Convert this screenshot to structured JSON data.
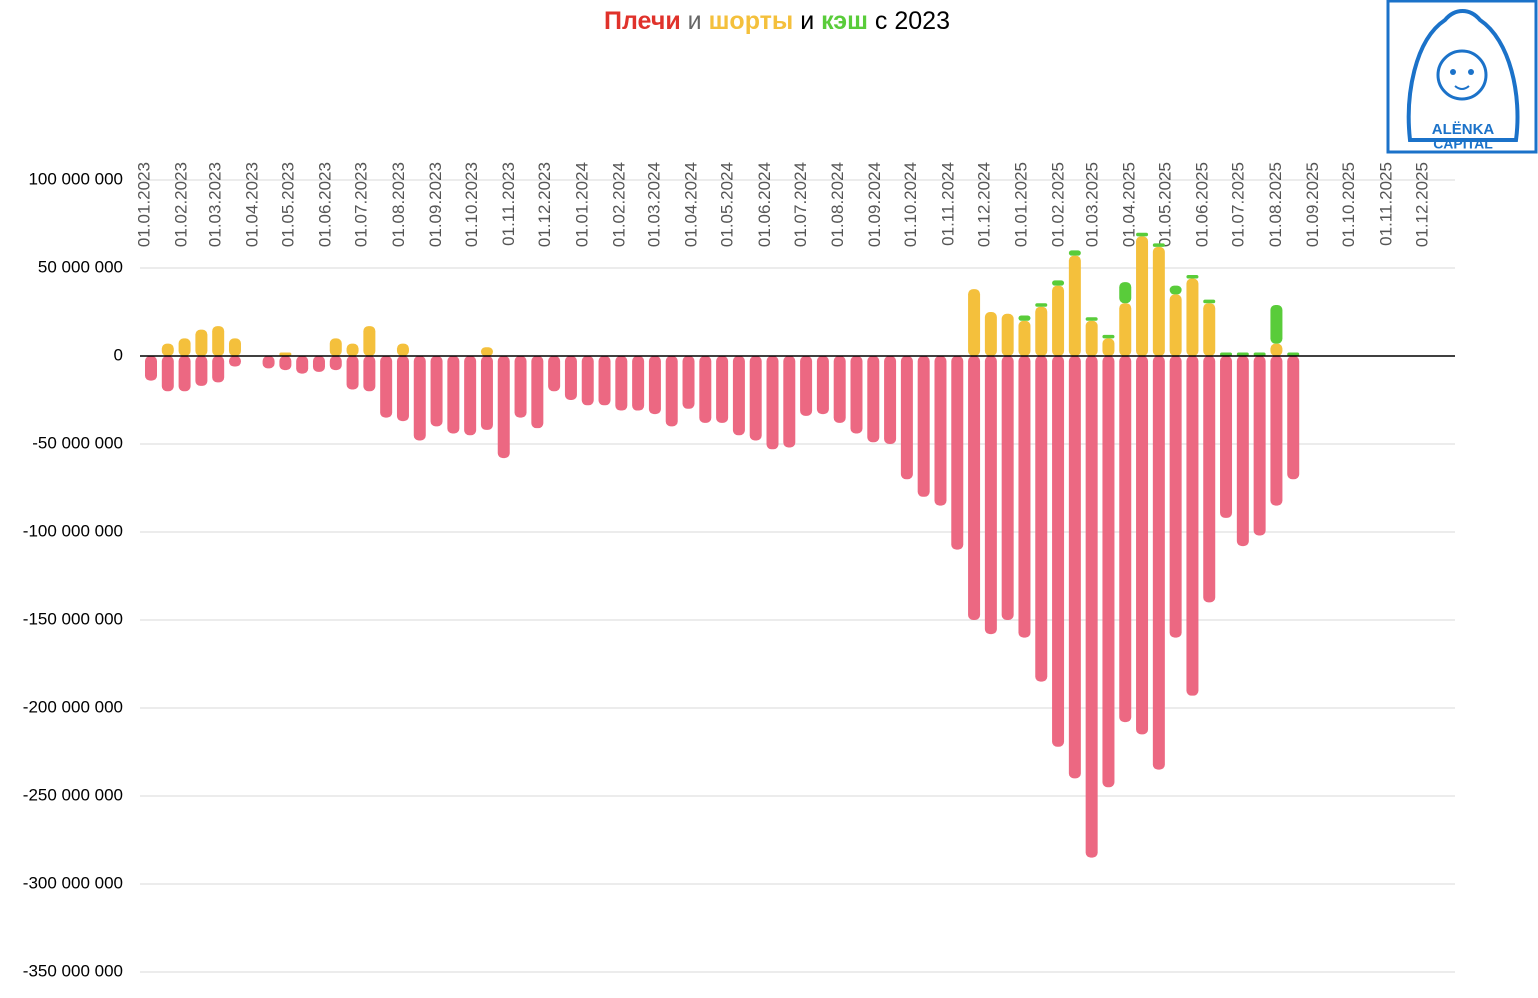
{
  "chart_data": {
    "type": "bar",
    "title": [
      {
        "text": "Плечи",
        "color": "#e0322b",
        "bold": true
      },
      {
        "text": "и",
        "color": "#666666",
        "bold": false
      },
      {
        "text": "шорты",
        "color": "#f4c03c",
        "bold": true
      },
      {
        "text": "и",
        "color": "#000000",
        "bold": false
      },
      {
        "text": "кэш",
        "color": "#59cc3a",
        "bold": true
      },
      {
        "text": "с 2023",
        "color": "#000000",
        "bold": false
      }
    ],
    "logo": {
      "line1": "ALËNKA",
      "line2": "CAPITAL"
    },
    "stacked": true,
    "x": [
      "06.01.2023",
      "20.01.2023",
      "03.02.2023",
      "17.02.2023",
      "03.03.2023",
      "17.03.2023",
      "31.03.2023",
      "14.04.2023",
      "28.04.2023",
      "12.05.2023",
      "26.05.2023",
      "09.06.2023",
      "23.06.2023",
      "07.07.2023",
      "21.07.2023",
      "04.08.2023",
      "18.08.2023",
      "01.09.2023",
      "15.09.2023",
      "29.09.2023",
      "13.10.2023",
      "27.10.2023",
      "10.11.2023",
      "24.11.2023",
      "08.12.2023",
      "22.12.2023",
      "05.01.2024",
      "19.01.2024",
      "02.02.2024",
      "16.02.2024",
      "01.03.2024",
      "15.03.2024",
      "29.03.2024",
      "12.04.2024",
      "26.04.2024",
      "10.05.2024",
      "24.05.2024",
      "07.06.2024",
      "21.06.2024",
      "05.07.2024",
      "19.07.2024",
      "02.08.2024",
      "16.08.2024",
      "30.08.2024",
      "13.09.2024",
      "27.09.2024",
      "11.10.2024",
      "25.10.2024",
      "08.11.2024",
      "22.11.2024",
      "06.12.2024",
      "20.12.2024",
      "03.01.2025",
      "17.01.2025",
      "31.01.2025",
      "14.02.2025",
      "28.02.2025",
      "14.03.2025",
      "28.03.2025",
      "11.04.2025",
      "25.04.2025",
      "09.05.2025",
      "23.05.2025",
      "06.06.2025",
      "20.06.2025",
      "04.07.2025",
      "18.07.2025",
      "01.08.2025",
      "15.08.2025"
    ],
    "series": [
      {
        "color": "#ec6882",
        "values": [
          -14000000,
          -20000000,
          -20000000,
          -17000000,
          -15000000,
          -6000000,
          null,
          -7000000,
          -8000000,
          -10000000,
          -9000000,
          -8000000,
          -19000000,
          -20000000,
          -35000000,
          -37000000,
          -48000000,
          -40000000,
          -44000000,
          -45000000,
          -42000000,
          -58000000,
          -35000000,
          -41000000,
          -20000000,
          -25000000,
          -28000000,
          -28000000,
          -31000000,
          -31000000,
          -33000000,
          -40000000,
          -30000000,
          -38000000,
          -38000000,
          -45000000,
          -48000000,
          -53000000,
          -52000000,
          -34000000,
          -33000000,
          -38000000,
          -44000000,
          -49000000,
          -50000000,
          -70000000,
          -80000000,
          -85000000,
          -110000000,
          -150000000,
          -158000000,
          -150000000,
          -160000000,
          -185000000,
          -222000000,
          -240000000,
          -285000000,
          -245000000,
          -208000000,
          -215000000,
          -235000000,
          -160000000,
          -193000000,
          -140000000,
          -92000000,
          -108000000,
          -102000000,
          -85000000,
          -70000000
        ]
      },
      {
        "color": "#f4c03c",
        "values": [
          0,
          7000000,
          10000000,
          15000000,
          17000000,
          10000000,
          null,
          0,
          2000000,
          0,
          0,
          10000000,
          7000000,
          17000000,
          0,
          7000000,
          0,
          0,
          0,
          0,
          5000000,
          0,
          0,
          0,
          0,
          0,
          0,
          0,
          0,
          0,
          0,
          0,
          0,
          0,
          0,
          0,
          0,
          0,
          0,
          0,
          0,
          0,
          0,
          0,
          0,
          0,
          0,
          0,
          0,
          38000000,
          25000000,
          24000000,
          20000000,
          28000000,
          40000000,
          57000000,
          20000000,
          10000000,
          30000000,
          68000000,
          62000000,
          35000000,
          44000000,
          30000000,
          0,
          0,
          0,
          7000000,
          0
        ]
      },
      {
        "color": "#59cc3a",
        "values": [
          0,
          0,
          0,
          0,
          0,
          0,
          null,
          0,
          0,
          0,
          0,
          0,
          0,
          0,
          0,
          0,
          0,
          0,
          0,
          0,
          0,
          0,
          0,
          0,
          0,
          0,
          0,
          0,
          0,
          0,
          0,
          0,
          0,
          0,
          0,
          0,
          0,
          0,
          0,
          0,
          0,
          0,
          0,
          0,
          0,
          0,
          0,
          0,
          0,
          0,
          0,
          0,
          3000000,
          2000000,
          3000000,
          3000000,
          2000000,
          2000000,
          12000000,
          2000000,
          2000000,
          5000000,
          2000000,
          2000000,
          2000000,
          2000000,
          2000000,
          22000000,
          2000000
        ]
      }
    ],
    "xlim": [
      "01.01.2023",
      "01.01.2026"
    ],
    "xticks": [
      "01.01.2023",
      "01.02.2023",
      "01.03.2023",
      "01.04.2023",
      "01.05.2023",
      "01.06.2023",
      "01.07.2023",
      "01.08.2023",
      "01.09.2023",
      "01.10.2023",
      "01.11.2023",
      "01.12.2023",
      "01.01.2024",
      "01.02.2024",
      "01.03.2024",
      "01.04.2024",
      "01.05.2024",
      "01.06.2024",
      "01.07.2024",
      "01.08.2024",
      "01.09.2024",
      "01.10.2024",
      "01.11.2024",
      "01.12.2024",
      "01.01.2025",
      "01.02.2025",
      "01.03.2025",
      "01.04.2025",
      "01.05.2025",
      "01.06.2025",
      "01.07.2025",
      "01.08.2025",
      "01.09.2025",
      "01.10.2025",
      "01.11.2025",
      "01.12.2025"
    ],
    "ylim": [
      -350000000,
      100000000
    ],
    "yticks": [
      {
        "value": 100000000,
        "label": "100 000 000"
      },
      {
        "value": 50000000,
        "label": "50 000 000"
      },
      0,
      {
        "value": -50000000,
        "label": "-50 000 000"
      },
      {
        "value": -100000000,
        "label": "-100 000 000"
      },
      {
        "value": -150000000,
        "label": "-150 000 000"
      },
      {
        "value": -200000000,
        "label": "-200 000 000"
      },
      {
        "value": -250000000,
        "label": "-250 000 000"
      },
      {
        "value": -300000000,
        "label": "-300 000 000"
      },
      {
        "value": -350000000,
        "label": "-350 000 000"
      }
    ],
    "grid": true
  }
}
